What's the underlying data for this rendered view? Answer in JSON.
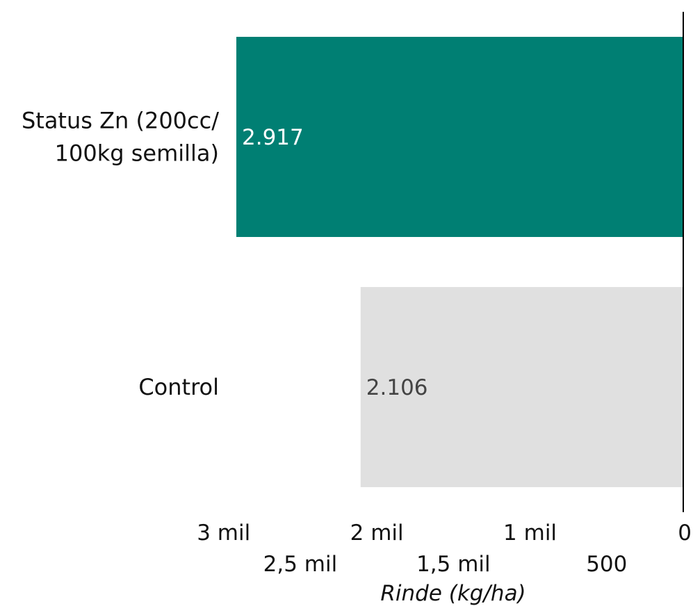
{
  "chart_data": {
    "type": "bar",
    "orientation": "horizontal",
    "x_reversed": true,
    "categories": [
      "Status Zn (200cc/ 100kg semilla)",
      "Control"
    ],
    "category_lines": [
      [
        "Status Zn (200cc/",
        "100kg semilla)"
      ],
      [
        "Control"
      ]
    ],
    "values": [
      2917,
      2106
    ],
    "value_labels": [
      "2.917",
      "2.106"
    ],
    "bar_colors": [
      "#007f73",
      "#e0e0e0"
    ],
    "value_label_colors": [
      "#ffffff",
      "#444444"
    ],
    "xlim": [
      0,
      2917
    ],
    "xticks": [
      {
        "value": 3000,
        "label": "3 mil",
        "row": 0
      },
      {
        "value": 2500,
        "label": "2,5 mil",
        "row": 1
      },
      {
        "value": 2000,
        "label": "2 mil",
        "row": 0
      },
      {
        "value": 1500,
        "label": "1,5 mil",
        "row": 1
      },
      {
        "value": 1000,
        "label": "1 mil",
        "row": 0
      },
      {
        "value": 500,
        "label": "500",
        "row": 1
      },
      {
        "value": 0,
        "label": "0",
        "row": 0
      }
    ],
    "xlabel": "Rinde (kg/ha)",
    "ylabel": "",
    "title": "",
    "grid": false
  }
}
